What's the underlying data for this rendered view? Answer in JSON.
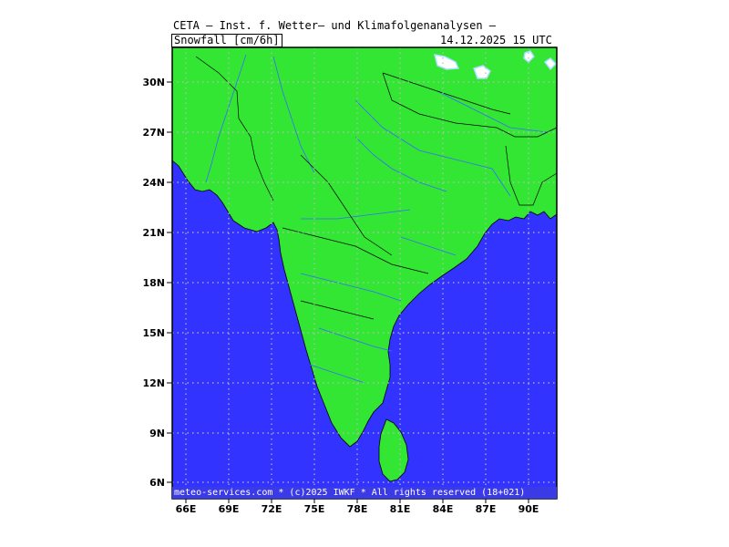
{
  "header": {
    "title": "CETA — Inst. f. Wetter— und Klimafolgenanalysen —",
    "parameter": "Snowfall [cm/6h]",
    "valid_time": "14.12.2025 15 UTC"
  },
  "footer": {
    "copyright": "meteo-services.com * (c)2025 IWKF * All rights reserved (18+021)"
  },
  "axes": {
    "lat_ticks": [
      "30N",
      "27N",
      "24N",
      "21N",
      "18N",
      "15N",
      "12N",
      "9N",
      "6N"
    ],
    "lon_ticks": [
      "66E",
      "69E",
      "72E",
      "75E",
      "78E",
      "81E",
      "84E",
      "87E",
      "90E"
    ]
  },
  "colors": {
    "land": "#33e633",
    "sea": "#3333ff",
    "snow": "#ffffff",
    "snow_edge": "#aaddff",
    "grid": "#bbbbbb"
  }
}
